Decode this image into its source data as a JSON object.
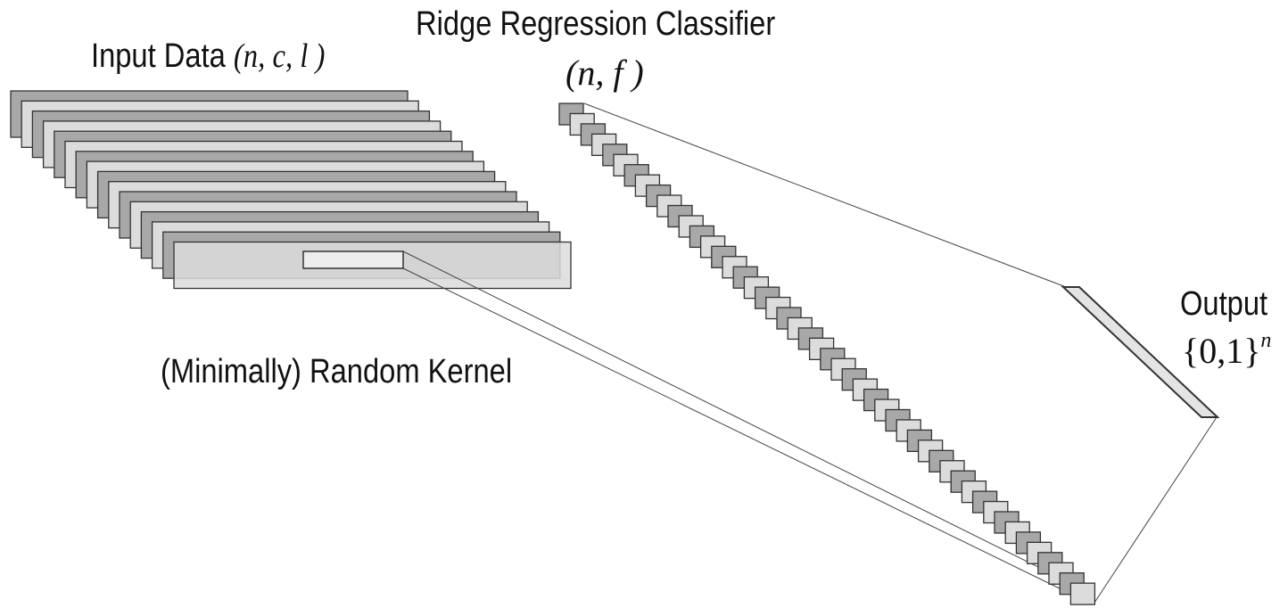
{
  "labels": {
    "input": {
      "text": "Input Data",
      "math": "(n, c, l )"
    },
    "classifier": {
      "title": "Ridge Regression Classifier",
      "math": "(n, f )"
    },
    "kernel": "(Minimally) Random Kernel",
    "output": {
      "title": "Output",
      "set": "{0,1}",
      "sup": "n"
    }
  },
  "colors": {
    "dark_fill": "#a8a8a8",
    "light_fill": "#dcdcdc",
    "stroke": "#333333",
    "output_fill": "#e4e4e4"
  },
  "structure": {
    "input_layers": 16,
    "classifier_units": 48
  }
}
